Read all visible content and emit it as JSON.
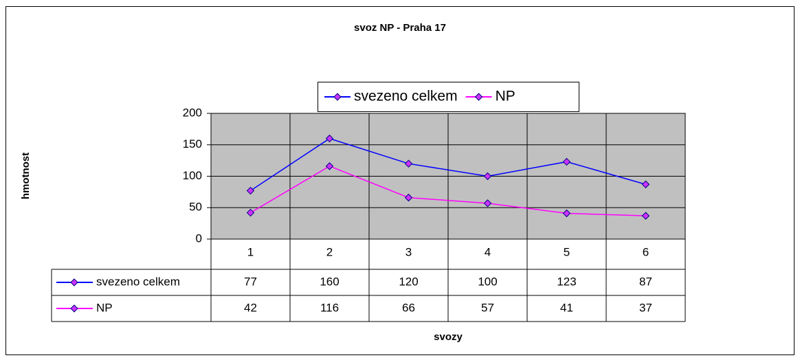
{
  "chart_data": {
    "type": "line",
    "title": "svoz NP - Praha 17",
    "x_label": "svozy",
    "y_label": "hmotnost",
    "categories": [
      "1",
      "2",
      "3",
      "4",
      "5",
      "6"
    ],
    "series": [
      {
        "name": "svezeno celkem",
        "color": "#0000ff",
        "values": [
          77,
          160,
          120,
          100,
          123,
          87
        ]
      },
      {
        "name": "NP",
        "color": "#ff00ff",
        "values": [
          42,
          116,
          66,
          57,
          41,
          37
        ]
      }
    ],
    "marker_color": "#cc33ff",
    "ylim": [
      0,
      200
    ],
    "yticks": [
      0,
      50,
      100,
      150,
      200
    ],
    "grid": true,
    "plot_background": "#c0c0c0",
    "data_table": true
  }
}
